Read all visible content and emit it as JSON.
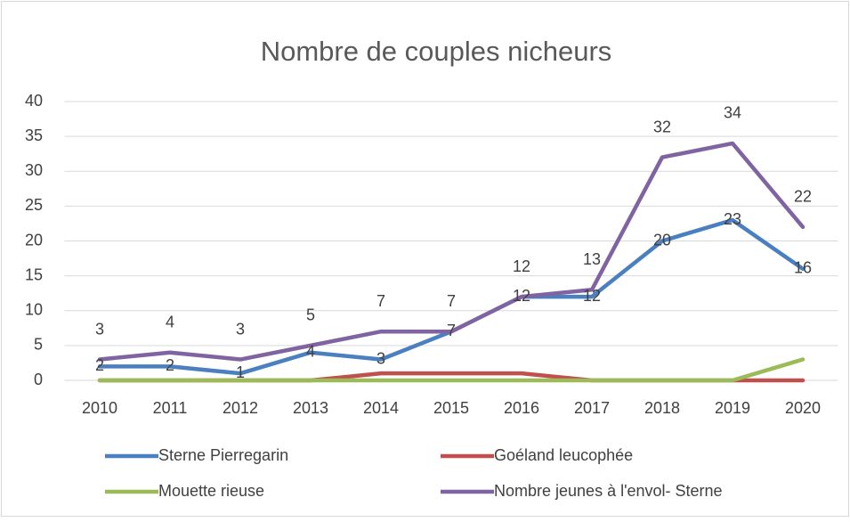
{
  "chart_data": {
    "type": "line",
    "title": "Nombre de couples nicheurs",
    "categories": [
      "2010",
      "2011",
      "2012",
      "2013",
      "2014",
      "2015",
      "2016",
      "2017",
      "2018",
      "2019",
      "2020"
    ],
    "series": [
      {
        "name": "Sterne Pierregarin",
        "color": "#4a7fc0",
        "values": [
          2,
          2,
          1,
          4,
          3,
          7,
          12,
          12,
          20,
          23,
          16
        ],
        "data_labels": true,
        "label_position": "center"
      },
      {
        "name": "Goéland leucophée",
        "color": "#c0504d",
        "values": [
          0,
          0,
          0,
          0,
          1,
          1,
          1,
          0,
          0,
          0,
          0
        ],
        "data_labels": false
      },
      {
        "name": "Mouette rieuse",
        "color": "#9bbb59",
        "values": [
          0,
          0,
          0,
          0,
          0,
          0,
          0,
          0,
          0,
          0,
          3
        ],
        "data_labels": false
      },
      {
        "name": "Nombre jeunes à l'envol- Sterne",
        "color": "#8064a2",
        "values": [
          3,
          4,
          3,
          5,
          7,
          7,
          12,
          13,
          32,
          34,
          22
        ],
        "data_labels": true,
        "label_position": "above"
      }
    ],
    "ylim": [
      0,
      40
    ],
    "yticks": [
      0,
      5,
      10,
      15,
      20,
      25,
      30,
      35,
      40
    ],
    "grid": true,
    "legend": "bottom"
  }
}
